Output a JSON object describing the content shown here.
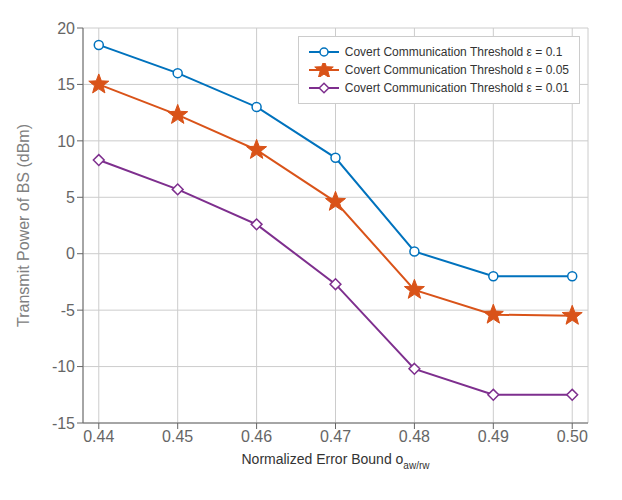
{
  "chart_data": {
    "type": "line",
    "xlabel": "Normalized Error Bound o",
    "annotations": [
      "aw/rw"
    ],
    "ylabel": "Transmit Power of BS (dBm)",
    "x": [
      0.44,
      0.45,
      0.46,
      0.47,
      0.48,
      0.49,
      0.5
    ],
    "series": [
      {
        "name": "Covert Communication Threshold ε = 0.1",
        "color": "#0072BD",
        "marker": "circle",
        "values": [
          18.5,
          16.0,
          13.0,
          8.5,
          0.2,
          -2.0,
          -2.0
        ]
      },
      {
        "name": "Covert Communication Threshold ε = 0.05",
        "color": "#D95319",
        "marker": "star",
        "values": [
          15.0,
          12.3,
          9.2,
          4.6,
          -3.2,
          -5.4,
          -5.5
        ]
      },
      {
        "name": "Covert Communication Threshold ε = 0.01",
        "color": "#7E2F8E",
        "marker": "diamond",
        "values": [
          8.3,
          5.7,
          2.6,
          -2.7,
          -10.2,
          -12.5,
          -12.5
        ]
      }
    ],
    "xlim": [
      0.438,
      0.502
    ],
    "ylim": [
      -15,
      20
    ],
    "xticks": [
      0.44,
      0.45,
      0.46,
      0.47,
      0.48,
      0.49,
      {
        "value": 0.5,
        "label": "0.50"
      }
    ],
    "yticks": [
      -15,
      -10,
      -5,
      0,
      5,
      10,
      15,
      20
    ],
    "grid": true,
    "legend": "upper right"
  }
}
